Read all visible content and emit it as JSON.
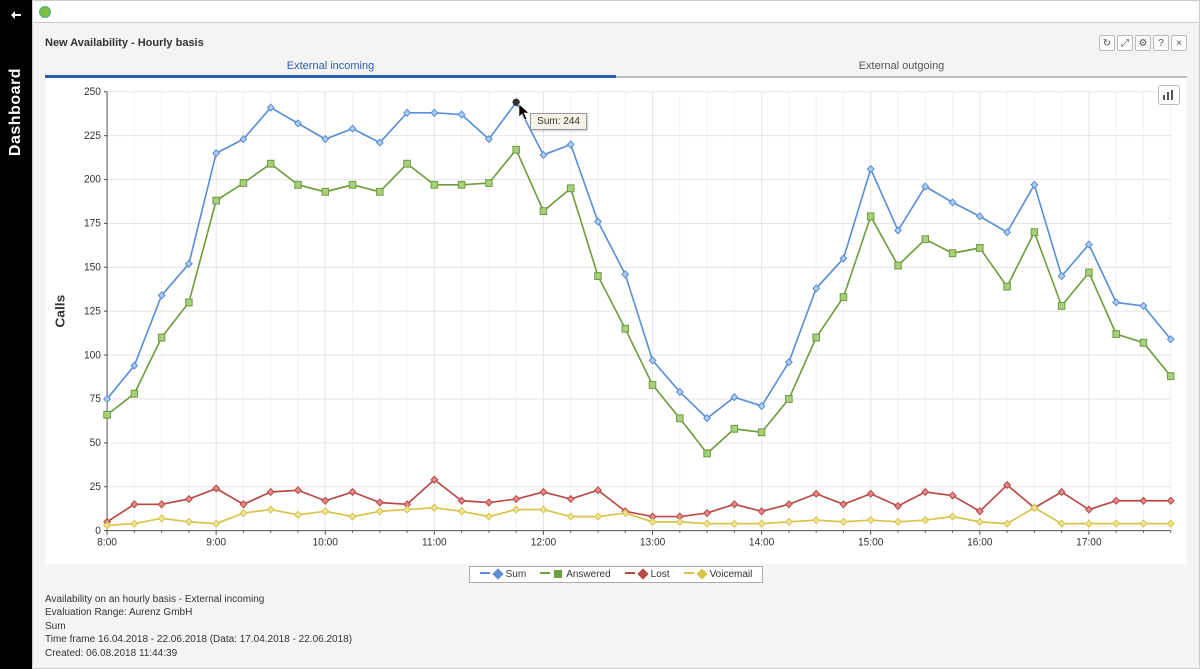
{
  "sidebar": {
    "label": "Dashboard"
  },
  "panel": {
    "title": "New Availability - Hourly basis",
    "actions": [
      "refresh",
      "expand",
      "settings",
      "help",
      "close"
    ]
  },
  "tabs": {
    "active": 0,
    "items": [
      {
        "label": "External incoming"
      },
      {
        "label": "External outgoing"
      }
    ]
  },
  "chart": {
    "type": "line",
    "y_axis_label": "Calls",
    "ylim": [
      0,
      250
    ],
    "ytick_step": 25,
    "x_major_labels": [
      "8:00",
      "9:00",
      "10:00",
      "11:00",
      "12:00",
      "13:00",
      "14:00",
      "15:00",
      "16:00",
      "17:00"
    ],
    "x_minor_per_major": 4,
    "x_total_points": 40,
    "background_color": "#ffffff",
    "grid_color": "#e6e6e6",
    "grid_minor_color": "#f2f2f2",
    "axis_color": "#555555",
    "label_fontsize": 10,
    "axis_fontsize": 10,
    "marker_size": 3.2,
    "line_width": 1.6,
    "series": [
      {
        "name": "Sum",
        "color": "#5b8fd6",
        "marker_fill": "#aecdf2",
        "marker": "diamond",
        "values": [
          75,
          94,
          134,
          152,
          215,
          223,
          241,
          232,
          223,
          229,
          221,
          238,
          238,
          237,
          223,
          244,
          214,
          220,
          176,
          146,
          97,
          79,
          64,
          76,
          71,
          96,
          138,
          155,
          206,
          171,
          196,
          187,
          179,
          170,
          197,
          145,
          163,
          130,
          128,
          109
        ]
      },
      {
        "name": "Answered",
        "color": "#6f9e3f",
        "marker_fill": "#a8cf7d",
        "marker": "square",
        "values": [
          66,
          78,
          110,
          130,
          188,
          198,
          209,
          197,
          193,
          197,
          193,
          209,
          197,
          197,
          198,
          217,
          182,
          195,
          145,
          115,
          83,
          64,
          44,
          58,
          56,
          75,
          110,
          133,
          179,
          151,
          166,
          158,
          161,
          139,
          170,
          128,
          147,
          112,
          107,
          88
        ]
      },
      {
        "name": "Lost",
        "color": "#b94a48",
        "marker_fill": "#e28a88",
        "marker": "diamond",
        "values": [
          5,
          15,
          15,
          18,
          24,
          15,
          22,
          23,
          17,
          22,
          16,
          15,
          29,
          17,
          16,
          18,
          22,
          18,
          23,
          11,
          8,
          8,
          10,
          15,
          11,
          15,
          21,
          15,
          21,
          14,
          22,
          20,
          11,
          26,
          13,
          22,
          12,
          17,
          17,
          17
        ]
      },
      {
        "name": "Voicemail",
        "color": "#d8c44a",
        "marker_fill": "#efe399",
        "marker": "diamond",
        "values": [
          3,
          4,
          7,
          5,
          4,
          10,
          12,
          9,
          11,
          8,
          11,
          12,
          13,
          11,
          8,
          12,
          12,
          8,
          8,
          10,
          5,
          5,
          4,
          4,
          4,
          5,
          6,
          5,
          6,
          5,
          6,
          8,
          5,
          4,
          13,
          4,
          4,
          4,
          4,
          4
        ]
      }
    ],
    "highlight": {
      "index": 15,
      "label": "Sum: 244",
      "point_color": "#333333"
    }
  },
  "legend": {
    "items": [
      {
        "label": "Sum",
        "color": "#5b8fd6",
        "marker": "diamond"
      },
      {
        "label": "Answered",
        "color": "#6f9e3f",
        "marker": "square"
      },
      {
        "label": "Lost",
        "color": "#b94a48",
        "marker": "diamond"
      },
      {
        "label": "Voicemail",
        "color": "#d8c44a",
        "marker": "diamond"
      }
    ]
  },
  "footer": {
    "line1": "Availability on an hourly basis - External incoming",
    "line2": "Evaluation Range: Aurenz GmbH",
    "line3": "Sum",
    "line4": "Time frame 16.04.2018 - 22.06.2018 (Data: 17.04.2018 - 22.06.2018)",
    "line5": "Created: 06.08.2018 11:44:39"
  }
}
